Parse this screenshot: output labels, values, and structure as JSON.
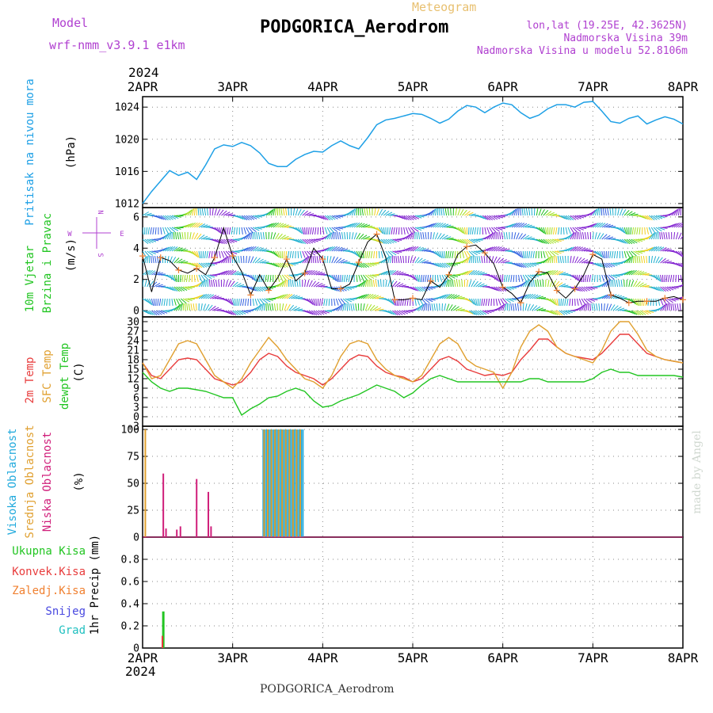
{
  "header": {
    "model_label": "Model",
    "model_name": "wrf-nmm_v3.9.1 e1km",
    "meteogram_label": "Meteogram",
    "station_title": "PODGORICA_Aerodrom",
    "lonlat": "lon,lat (19.25E, 42.3625N)",
    "elevation": "Nadmorska Visina 39m",
    "model_elevation": "Nadmorska Visina u modelu 52.8106m",
    "year_top": "2024",
    "year_bottom": "2024",
    "footer_title": "PODGORICA_Aerodrom",
    "watermark": "made by Angel"
  },
  "colors": {
    "pressure": "#1ea0e6",
    "temp2m": "#e83c3c",
    "sfc": "#e0a030",
    "dewpt": "#22c522",
    "high_cloud": "#22aadd",
    "mid_cloud": "#e0a030",
    "low_cloud": "#d01e7a",
    "total_precip": "#22c522",
    "conv_precip": "#e83c3c",
    "frozen_precip": "#f08030",
    "snow": "#4848e0",
    "hail": "#20c0c0",
    "model_label": "#b040d0",
    "meteogram_label": "#e8c070",
    "wind_arrows": "#3060e0",
    "wind_palette": [
      "#20c020",
      "#a0e020",
      "#f0d020",
      "#f08020",
      "#e02060",
      "#20b0d0",
      "#8020d0",
      "#3060e0"
    ]
  },
  "chart_data": [
    {
      "id": "pressure",
      "type": "line",
      "title": "",
      "ylabel": "Pritisak na nivou mora",
      "units": "(hPa)",
      "ylim": [
        1011.5,
        1025.3
      ],
      "yticks": [
        1012,
        1016,
        1020,
        1024
      ],
      "grid": true,
      "x_days": [
        0,
        0.1,
        0.2,
        0.3,
        0.4,
        0.5,
        0.6,
        0.7,
        0.8,
        0.9,
        1.0,
        1.1,
        1.2,
        1.3,
        1.4,
        1.5,
        1.6,
        1.7,
        1.8,
        1.9,
        2.0,
        2.1,
        2.2,
        2.3,
        2.4,
        2.5,
        2.6,
        2.7,
        2.8,
        2.9,
        3.0,
        3.1,
        3.2,
        3.3,
        3.4,
        3.5,
        3.6,
        3.7,
        3.8,
        3.9,
        4.0,
        4.1,
        4.2,
        4.3,
        4.4,
        4.5,
        4.6,
        4.7,
        4.8,
        4.9,
        5.0,
        5.1,
        5.2,
        5.3,
        5.4,
        5.5,
        5.6,
        5.7,
        5.8,
        5.9,
        6.0
      ],
      "values": [
        1012,
        1013.5,
        1014.8,
        1016.1,
        1015.5,
        1015.9,
        1015.0,
        1016.8,
        1018.8,
        1019.3,
        1019.1,
        1019.6,
        1019.2,
        1018.3,
        1017.0,
        1016.6,
        1016.6,
        1017.5,
        1018.1,
        1018.5,
        1018.4,
        1019.2,
        1019.8,
        1019.2,
        1018.8,
        1020.2,
        1021.8,
        1022.4,
        1022.6,
        1022.9,
        1023.2,
        1023.1,
        1022.6,
        1022.0,
        1022.5,
        1023.5,
        1024.2,
        1024.0,
        1023.3,
        1024.0,
        1024.5,
        1024.3,
        1023.3,
        1022.6,
        1023.0,
        1023.8,
        1024.3,
        1024.3,
        1024.0,
        1024.6,
        1024.7,
        1023.5,
        1022.2,
        1022.0,
        1022.6,
        1022.9,
        1021.9,
        1022.4,
        1022.8,
        1022.5,
        1021.9
      ],
      "series_name": ""
    },
    {
      "id": "wind",
      "type": "line",
      "ylabel": "10m Vjetar",
      "ylabel2": "Brzina i Pravac",
      "units": "(m/s)",
      "ylim": [
        -0.4,
        6.6
      ],
      "yticks": [
        0,
        2,
        4,
        6
      ],
      "grid": true,
      "compass": [
        "N",
        "S",
        "W",
        "E"
      ],
      "x_days": [
        0,
        0.1,
        0.2,
        0.3,
        0.4,
        0.5,
        0.6,
        0.7,
        0.8,
        0.9,
        1.0,
        1.1,
        1.2,
        1.3,
        1.4,
        1.5,
        1.6,
        1.7,
        1.8,
        1.9,
        2.0,
        2.1,
        2.2,
        2.3,
        2.4,
        2.5,
        2.6,
        2.7,
        2.8,
        2.9,
        3.0,
        3.1,
        3.2,
        3.3,
        3.4,
        3.5,
        3.6,
        3.7,
        3.8,
        3.9,
        4.0,
        4.1,
        4.2,
        4.3,
        4.4,
        4.5,
        4.6,
        4.7,
        4.8,
        4.9,
        5.0,
        5.1,
        5.2,
        5.3,
        5.4,
        5.5,
        5.6,
        5.7,
        5.8,
        5.9,
        6.0
      ],
      "values": [
        3.5,
        1.2,
        3.4,
        3.2,
        2.6,
        2.4,
        2.7,
        2.3,
        3.4,
        5.3,
        3.5,
        2.5,
        1.0,
        2.3,
        1.3,
        2.1,
        3.3,
        1.9,
        2.4,
        4.0,
        3.3,
        1.4,
        1.4,
        1.7,
        3.1,
        4.4,
        4.9,
        3.4,
        0.7,
        0.7,
        0.8,
        0.7,
        1.9,
        1.5,
        2.3,
        3.6,
        4.1,
        4.2,
        3.7,
        3.0,
        1.5,
        1.1,
        0.5,
        1.8,
        2.5,
        2.4,
        1.3,
        0.8,
        1.4,
        2.3,
        3.6,
        3.3,
        1.0,
        0.8,
        0.5,
        0.6,
        0.6,
        0.6,
        0.8,
        0.9,
        0.7
      ]
    },
    {
      "id": "temperature",
      "type": "line",
      "ylabels": [
        "2m Temp",
        "SFC Temp",
        "dewpt Temp"
      ],
      "units": "(C)",
      "ylim": [
        -3,
        31.5
      ],
      "yticks": [
        -3,
        0,
        3,
        6,
        9,
        12,
        15,
        18,
        21,
        24,
        27,
        30
      ],
      "grid": true,
      "x_days": [
        0,
        0.1,
        0.2,
        0.3,
        0.4,
        0.5,
        0.6,
        0.7,
        0.8,
        0.9,
        1.0,
        1.1,
        1.2,
        1.3,
        1.4,
        1.5,
        1.6,
        1.7,
        1.8,
        1.9,
        2.0,
        2.1,
        2.2,
        2.3,
        2.4,
        2.5,
        2.6,
        2.7,
        2.8,
        2.9,
        3.0,
        3.1,
        3.2,
        3.3,
        3.4,
        3.5,
        3.6,
        3.7,
        3.8,
        3.9,
        4.0,
        4.1,
        4.2,
        4.3,
        4.4,
        4.5,
        4.6,
        4.7,
        4.8,
        4.9,
        5.0,
        5.1,
        5.2,
        5.3,
        5.4,
        5.5,
        5.6,
        5.7,
        5.8,
        5.9,
        6.0
      ],
      "series": [
        {
          "name": "2m Temp",
          "color_key": "temp2m",
          "values": [
            17,
            13,
            12,
            15,
            18,
            18.5,
            18,
            15,
            12,
            11,
            10,
            11,
            14,
            18,
            20,
            19,
            16,
            14,
            13,
            12,
            10,
            12,
            15,
            18,
            19.5,
            19,
            16,
            14,
            13,
            12.5,
            11,
            12,
            15,
            18,
            19,
            17.5,
            15,
            14,
            13,
            13.5,
            13,
            14,
            18,
            21,
            24.5,
            24.5,
            22,
            20,
            19,
            18.5,
            18,
            20,
            23,
            26,
            26,
            23,
            20,
            19,
            18,
            17.5,
            17
          ]
        },
        {
          "name": "SFC Temp",
          "color_key": "sfc",
          "values": [
            17,
            12,
            13,
            18,
            23,
            24,
            23,
            18,
            13,
            11,
            9,
            12,
            17,
            21,
            25,
            22,
            18,
            15,
            12,
            11,
            9,
            13,
            19,
            23,
            24,
            23,
            18,
            15,
            13,
            12,
            11,
            13,
            18,
            23,
            25,
            23,
            18,
            16,
            15,
            14,
            9,
            14,
            22,
            27,
            29,
            27,
            22,
            20,
            19,
            18,
            17,
            21,
            27,
            30,
            30,
            26,
            21,
            19,
            18,
            17.5,
            17
          ]
        },
        {
          "name": "dewpt Temp",
          "color_key": "dewpt",
          "values": [
            14,
            11,
            9,
            8,
            9,
            9,
            8.5,
            8,
            7,
            6,
            6,
            0.5,
            2.5,
            4,
            6,
            6.5,
            8,
            9,
            8,
            5,
            3,
            3.5,
            5,
            6,
            7,
            8.5,
            10,
            9,
            8,
            6,
            7.5,
            10,
            12,
            13,
            12,
            11,
            11,
            11,
            11,
            11,
            11,
            11,
            11,
            12,
            12,
            11,
            11,
            11,
            11,
            11,
            12,
            14,
            15,
            14,
            14,
            13,
            13,
            13,
            13,
            13,
            12.5
          ]
        }
      ]
    },
    {
      "id": "clouds",
      "type": "bar",
      "ylabels": [
        "Visoka Oblacnost",
        "Srednja Oblacnost",
        "Niska Oblacnost"
      ],
      "units": "(%)",
      "ylim": [
        0,
        103
      ],
      "yticks": [
        0,
        25,
        50,
        75,
        100
      ],
      "grid": true,
      "high": [
        {
          "x": 1.34,
          "v": 100
        },
        {
          "x": 1.36,
          "v": 100
        },
        {
          "x": 1.38,
          "v": 100
        },
        {
          "x": 1.4,
          "v": 100
        },
        {
          "x": 1.42,
          "v": 100
        },
        {
          "x": 1.44,
          "v": 100
        },
        {
          "x": 1.46,
          "v": 100
        },
        {
          "x": 1.48,
          "v": 100
        },
        {
          "x": 1.5,
          "v": 100
        },
        {
          "x": 1.52,
          "v": 100
        },
        {
          "x": 1.54,
          "v": 100
        },
        {
          "x": 1.56,
          "v": 100
        },
        {
          "x": 1.58,
          "v": 100
        },
        {
          "x": 1.6,
          "v": 100
        },
        {
          "x": 1.62,
          "v": 100
        },
        {
          "x": 1.64,
          "v": 100
        },
        {
          "x": 1.66,
          "v": 100
        },
        {
          "x": 1.68,
          "v": 100
        },
        {
          "x": 1.7,
          "v": 100
        },
        {
          "x": 1.72,
          "v": 100
        },
        {
          "x": 1.74,
          "v": 100
        },
        {
          "x": 1.76,
          "v": 100
        },
        {
          "x": 1.78,
          "v": 100
        }
      ],
      "mid": [
        {
          "x": 0.03,
          "v": 100
        },
        {
          "x": 1.35,
          "v": 100
        },
        {
          "x": 1.39,
          "v": 100
        },
        {
          "x": 1.43,
          "v": 100
        },
        {
          "x": 1.47,
          "v": 100
        },
        {
          "x": 1.51,
          "v": 100
        },
        {
          "x": 1.55,
          "v": 100
        },
        {
          "x": 1.59,
          "v": 100
        },
        {
          "x": 1.63,
          "v": 100
        },
        {
          "x": 1.67,
          "v": 100
        },
        {
          "x": 1.71,
          "v": 100
        },
        {
          "x": 1.75,
          "v": 100
        }
      ],
      "low": [
        {
          "x": 0.23,
          "v": 59
        },
        {
          "x": 0.26,
          "v": 8
        },
        {
          "x": 0.38,
          "v": 7
        },
        {
          "x": 0.42,
          "v": 10
        },
        {
          "x": 0.6,
          "v": 54
        },
        {
          "x": 0.73,
          "v": 42
        },
        {
          "x": 0.76,
          "v": 10
        }
      ]
    },
    {
      "id": "precip",
      "type": "bar",
      "ylabel": "1hr Precip (mm)",
      "legend": [
        "Ukupna Kisa",
        "Konvek.Kisa",
        "Zaledj.Kisa",
        "Snijeg",
        "Grad"
      ],
      "ylim": [
        0,
        1.0
      ],
      "yticks": [
        0,
        0.2,
        0.4,
        0.6,
        0.8
      ],
      "grid": true,
      "total": [
        {
          "x": 0.23,
          "v": 0.33
        }
      ],
      "conv": [
        {
          "x": 0.22,
          "v": 0.11
        }
      ]
    }
  ],
  "x_axis": {
    "ticks": [
      "2APR",
      "3APR",
      "4APR",
      "5APR",
      "6APR",
      "7APR",
      "8APR"
    ]
  }
}
